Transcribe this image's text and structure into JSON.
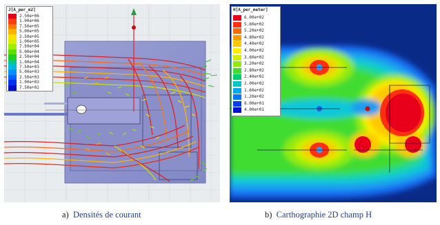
{
  "panel_a": {
    "legend": {
      "title": "J[A_per_m2]",
      "values": [
        "2.50e+06",
        "1.00e+06",
        "7.50e+05",
        "5.00e+05",
        "2.50e+05",
        "1.00e+05",
        "7.50e+04",
        "5.00e+04",
        "2.50e+04",
        "1.00e+04",
        "7.50e+03",
        "5.00e+03",
        "2.50e+03",
        "1.00e+03",
        "7.50e+02"
      ],
      "colors": [
        "#e0001a",
        "#ff3b10",
        "#ff7a00",
        "#ffb000",
        "#ffe000",
        "#d8f000",
        "#a0ee00",
        "#5cde00",
        "#20d020",
        "#00c890",
        "#00b8e0",
        "#0090ff",
        "#0060ff",
        "#0030f0",
        "#0010c8"
      ]
    },
    "caption_letter": "a)",
    "caption_text": "Densités de courant"
  },
  "panel_b": {
    "legend": {
      "title": "H[A_per_meter]",
      "values": [
        "6.00e+02",
        "5.60e+02",
        "5.20e+02",
        "4.80e+02",
        "4.40e+02",
        "4.00e+02",
        "3.60e+02",
        "3.20e+02",
        "2.80e+02",
        "2.40e+02",
        "2.00e+02",
        "1.60e+02",
        "1.20e+02",
        "8.00e+01",
        "4.00e+01"
      ],
      "colors": [
        "#e8001a",
        "#ff3010",
        "#ff6a00",
        "#ff9a00",
        "#ffc800",
        "#fff000",
        "#d0f000",
        "#90ea10",
        "#40dc30",
        "#00d070",
        "#00c8c8",
        "#00a8f0",
        "#0078ff",
        "#0040f0",
        "#0010d0"
      ]
    },
    "caption_letter": "b)",
    "caption_text": "Carthographie 2D champ H"
  }
}
